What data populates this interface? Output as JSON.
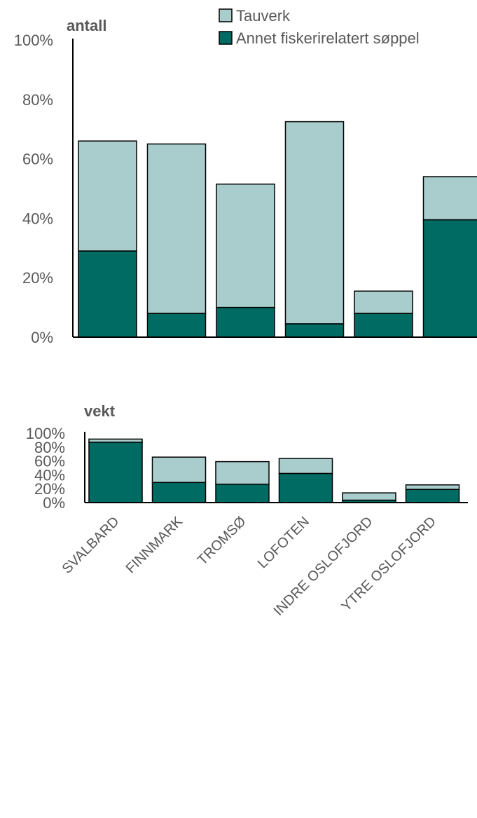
{
  "chart_data": [
    {
      "type": "bar",
      "stacked": true,
      "title": "antall",
      "categories": [
        "SVALBARD",
        "FINNMARK",
        "TROMSØ",
        "LOFOTEN",
        "INDRE OSLOFJORD",
        "YTRE OSLOFJORD"
      ],
      "series": [
        {
          "name": "Annet fiskerirelatert søppel",
          "color": "#006b63",
          "values": [
            29,
            8,
            10,
            4.5,
            8,
            39.5
          ]
        },
        {
          "name": "Tauverk",
          "color": "#a9cdcc",
          "values": [
            37,
            57,
            41.5,
            68,
            7.5,
            14.5
          ]
        }
      ],
      "ylim": [
        0,
        100
      ],
      "yticks": [
        "0%",
        "20%",
        "40%",
        "60%",
        "80%",
        "100%"
      ],
      "legend": "top-right",
      "grid": false,
      "show_category_labels": false
    },
    {
      "type": "bar",
      "stacked": true,
      "title": "vekt",
      "categories": [
        "SVALBARD",
        "FINNMARK",
        "TROMSØ",
        "LOFOTEN",
        "INDRE OSLOFJORD",
        "YTRE OSLOFJORD"
      ],
      "series": [
        {
          "name": "Annet fiskerirelatert søppel",
          "color": "#006b63",
          "values": [
            87,
            29,
            26.5,
            42,
            3.5,
            19
          ]
        },
        {
          "name": "Tauverk",
          "color": "#a9cdcc",
          "values": [
            4.5,
            36.5,
            32.5,
            21.5,
            10.5,
            6.5
          ]
        }
      ],
      "ylim": [
        0,
        100
      ],
      "yticks": [
        "0%",
        "20%",
        "40%",
        "60%",
        "80%",
        "100%"
      ],
      "grid": false,
      "show_category_labels": true
    }
  ]
}
